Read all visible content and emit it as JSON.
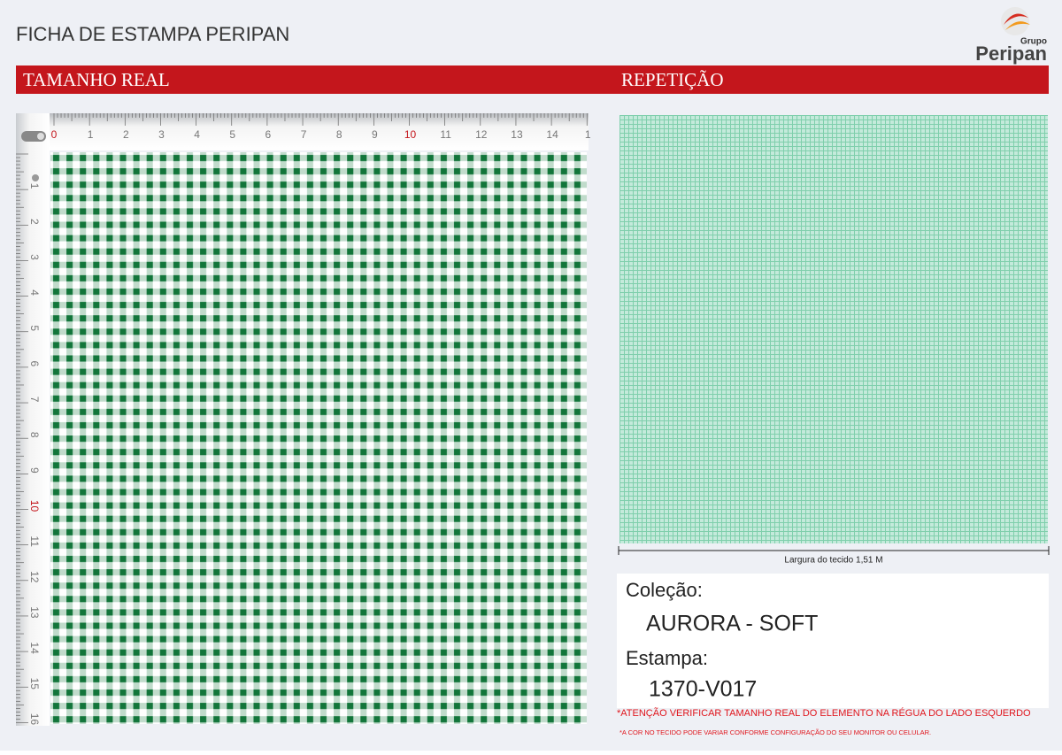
{
  "header": {
    "title": "FICHA DE ESTAMPA PERIPAN",
    "logo": {
      "top": "Grupo",
      "name": "Peripan"
    }
  },
  "sections": {
    "left": "TAMANHO REAL",
    "right": "REPETIÇÃO"
  },
  "ruler": {
    "top": [
      0,
      1,
      2,
      3,
      4,
      5,
      6,
      7,
      8,
      9,
      10,
      11,
      12,
      13,
      14,
      1
    ],
    "left": [
      1,
      2,
      3,
      4,
      5,
      6,
      7,
      8,
      9,
      10,
      11,
      12,
      13,
      14,
      15,
      16
    ]
  },
  "repeat": {
    "width_label": "Largura do tecido 1,51 M"
  },
  "info": {
    "collection_label": "Coleção:",
    "collection": "AURORA - SOFT",
    "print_label": "Estampa:",
    "print": "1370-V017"
  },
  "notes": [
    "*ATENÇÃO VERIFICAR TAMANHO REAL DO ELEMENTO NA RÉGUA DO LADO ESQUERDO",
    "*A COR NO TECIDO PODE VARIAR CONFORME CONFIGURAÇÃO DO SEU MONITOR OU CELULAR."
  ]
}
